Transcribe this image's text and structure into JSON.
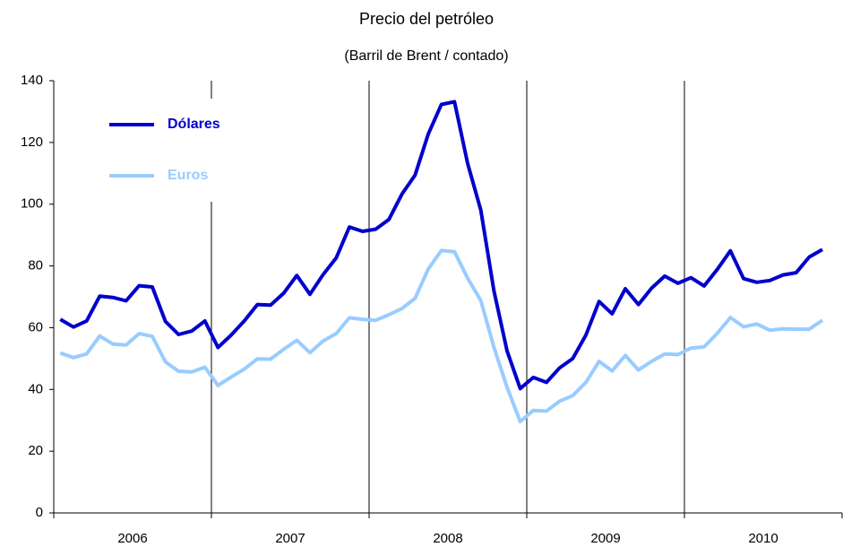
{
  "chart_data": {
    "type": "line",
    "title": "Precio del petróleo",
    "subtitle": "(Barril de Brent / contado)",
    "categories": [
      null,
      null,
      null,
      null,
      null,
      null,
      "2006",
      null,
      null,
      null,
      null,
      null,
      null,
      null,
      null,
      null,
      null,
      null,
      "2007",
      null,
      null,
      null,
      null,
      null,
      null,
      null,
      null,
      null,
      null,
      null,
      "2008",
      null,
      null,
      null,
      null,
      null,
      null,
      null,
      null,
      null,
      null,
      null,
      "2009",
      null,
      null,
      null,
      null,
      null,
      null,
      null,
      null,
      null,
      null,
      null,
      "2010",
      null,
      null,
      null,
      null
    ],
    "series": [
      {
        "name": "Dólares",
        "color": "#0000cc",
        "values": [
          62.7,
          60.2,
          62.2,
          70.2,
          69.8,
          68.7,
          73.6,
          73.2,
          62,
          57.8,
          58.9,
          62.2,
          53.6,
          57.6,
          62.2,
          67.5,
          67.3,
          71.2,
          76.9,
          70.8,
          77.2,
          82.6,
          92.6,
          91.2,
          91.9,
          95,
          103.3,
          109.4,
          122.7,
          132.3,
          133.2,
          113.2,
          98.1,
          72,
          52.5,
          40.3,
          43.9,
          42.3,
          47,
          50,
          57.6,
          68.5,
          64.5,
          72.6,
          67.5,
          72.8,
          76.7,
          74.4,
          76.2,
          73.5,
          78.9,
          84.9,
          75.9,
          74.7,
          75.3,
          77.1,
          77.8,
          82.9,
          85.3
        ]
      },
      {
        "name": "Euros",
        "color": "#99ccff",
        "values": [
          51.8,
          50.3,
          51.5,
          57.3,
          54.7,
          54.4,
          58.1,
          57.2,
          48.9,
          45.9,
          45.7,
          47.2,
          41.3,
          44,
          46.6,
          49.9,
          49.8,
          53,
          55.9,
          51.9,
          55.7,
          58.1,
          63.2,
          62.7,
          62.4,
          64.2,
          66.2,
          69.5,
          79,
          85,
          84.6,
          76,
          68.8,
          53.7,
          40.7,
          29.6,
          33.2,
          33,
          36.2,
          38,
          42.3,
          49.1,
          46,
          51,
          46.3,
          49.1,
          51.5,
          51.3,
          53.4,
          53.8,
          58.2,
          63.3,
          60.3,
          61.2,
          59.2,
          59.6,
          59.5,
          59.5,
          62.4
        ]
      }
    ],
    "ylim": [
      0,
      140
    ],
    "yticks": [
      0,
      20,
      40,
      60,
      80,
      100,
      120,
      140
    ]
  }
}
